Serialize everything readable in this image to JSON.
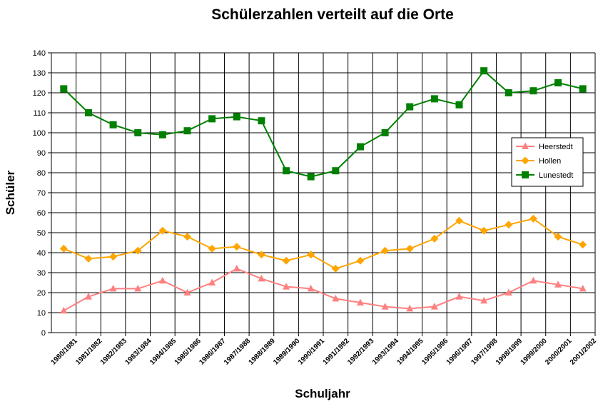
{
  "chart_data": {
    "type": "line",
    "title": "Schülerzahlen verteilt auf die Orte",
    "xlabel": "Schuljahr",
    "ylabel": "Schüler",
    "ylim": [
      0,
      140
    ],
    "ytick_step": 10,
    "grid": true,
    "legend_position": "right",
    "categories": [
      "1980/1981",
      "1981/1982",
      "1982/1983",
      "1983/1984",
      "1984/1985",
      "1985/1986",
      "1986/1987",
      "1987/1988",
      "1988/1989",
      "1989/1990",
      "1990/1991",
      "1991/1992",
      "1992/1993",
      "1993/1994",
      "1994/1995",
      "1995/1996",
      "1996/1997",
      "1997/1998",
      "1998/1999",
      "1999/2000",
      "2000/2001",
      "2001/2002"
    ],
    "series": [
      {
        "name": "Heerstedt",
        "color": "#ff8080",
        "marker": "triangle",
        "values": [
          11,
          18,
          22,
          22,
          26,
          20,
          25,
          32,
          27,
          23,
          22,
          17,
          15,
          13,
          12,
          13,
          18,
          16,
          20,
          26,
          24,
          22
        ]
      },
      {
        "name": "Hollen",
        "color": "#ffa500",
        "marker": "diamond",
        "values": [
          42,
          37,
          38,
          41,
          51,
          48,
          42,
          43,
          39,
          36,
          39,
          32,
          36,
          41,
          42,
          47,
          56,
          51,
          54,
          57,
          48,
          44
        ]
      },
      {
        "name": "Lunestedt",
        "color": "#008000",
        "marker": "square",
        "values": [
          122,
          110,
          104,
          100,
          99,
          101,
          107,
          108,
          106,
          81,
          78,
          81,
          93,
          100,
          113,
          117,
          114,
          131,
          120,
          121,
          125,
          122
        ]
      }
    ]
  }
}
